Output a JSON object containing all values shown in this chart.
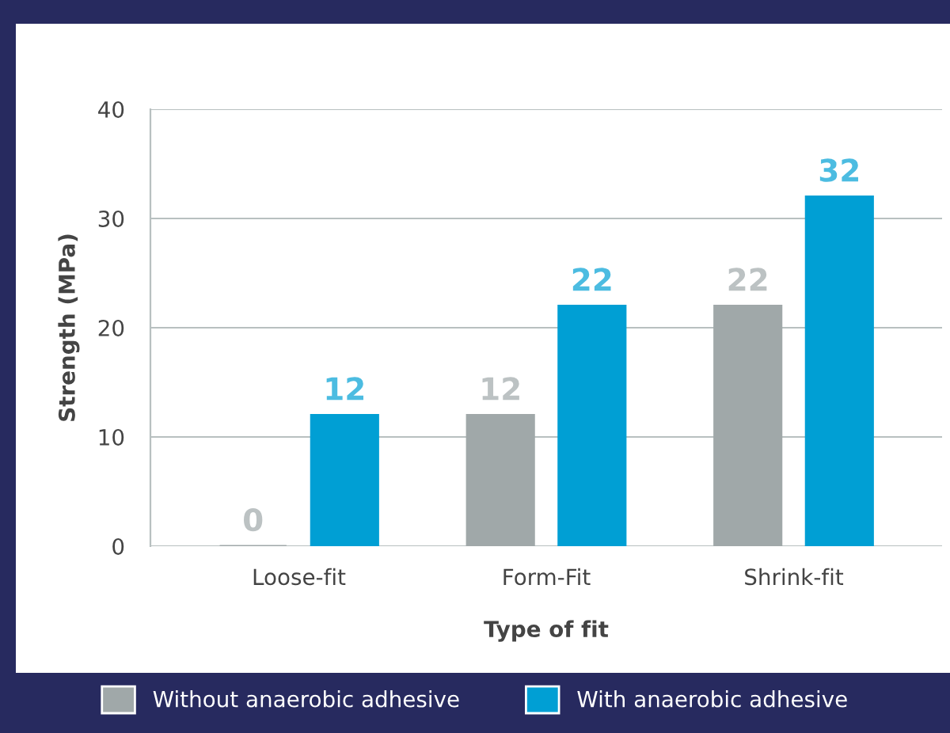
{
  "chart_data": {
    "type": "bar",
    "xlabel": "Type of fit",
    "ylabel": "Strength (MPa)",
    "categories": [
      "Loose-fit",
      "Form-Fit",
      "Shrink-fit"
    ],
    "series": [
      {
        "name": "Without anaerobic adhesive",
        "color": "#a0a8a9",
        "values": [
          0,
          12,
          22
        ]
      },
      {
        "name": "With anaerobic adhesive",
        "color": "#009fd4",
        "values": [
          12,
          22,
          32
        ]
      }
    ],
    "ylim": [
      0,
      40
    ],
    "yticks": [
      0,
      10,
      20,
      30,
      40
    ],
    "grid": "y",
    "data_labels": true,
    "legend": "bottom"
  }
}
